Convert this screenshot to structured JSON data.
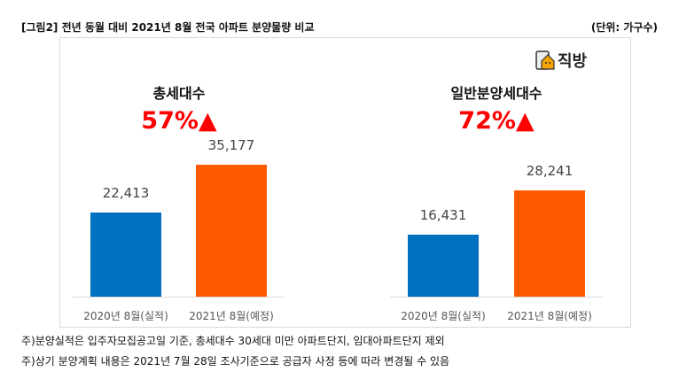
{
  "header": {
    "title": "[그림2] 전년 동월 대비 2021년 8월 전국 아파트 분양물량 비교",
    "unit": "(단위: 가구수)"
  },
  "logo": {
    "text": "직방",
    "icon": "zigbang-house-icon"
  },
  "chart_data": [
    {
      "type": "bar",
      "title": "총세대수",
      "annotation": "57%▲",
      "categories": [
        "2020년 8월(실적)",
        "2021년 8월(예정)"
      ],
      "values": [
        22413,
        35177
      ],
      "labels": [
        "22,413",
        "35,177"
      ],
      "colors": [
        "#0070c0",
        "#ff5a00"
      ]
    },
    {
      "type": "bar",
      "title": "일반분양세대수",
      "annotation": "72%▲",
      "categories": [
        "2020년 8월(실적)",
        "2021년 8월(예정)"
      ],
      "values": [
        16431,
        28241
      ],
      "labels": [
        "16,431",
        "28,241"
      ],
      "colors": [
        "#0070c0",
        "#ff5a00"
      ]
    }
  ],
  "notes": [
    "주)분양실적은 입주자모집공고일 기준, 총세대수 30세대 미만 아파트단지, 임대아파트단지 제외",
    "주)상기 분양계획 내용은 2021년 7월 28일 조사기준으로 공급자 사정 등에 따라 변경될 수 있음"
  ]
}
